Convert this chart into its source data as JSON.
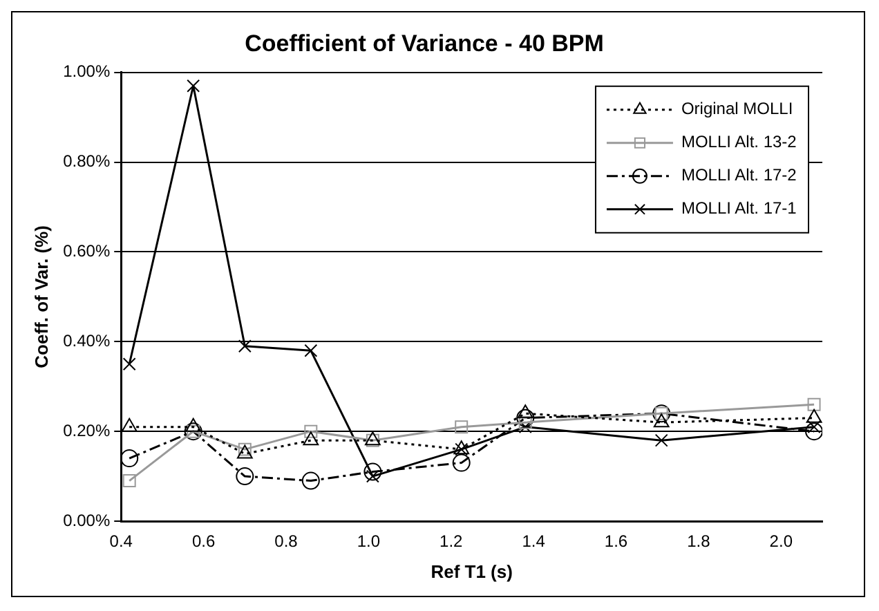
{
  "chart_data": {
    "type": "line",
    "title": "Coefficient of Variance - 40 BPM",
    "xlabel": "Ref T1 (s)",
    "ylabel": "Coeff. of Var. (%)",
    "x": [
      0.42,
      0.575,
      0.7,
      0.86,
      1.01,
      1.225,
      1.38,
      1.71,
      2.08
    ],
    "series": [
      {
        "name": "Original MOLLI",
        "color": "#000000",
        "marker": "triangle",
        "line_style": "dotted",
        "values": [
          0.21,
          0.21,
          0.15,
          0.18,
          0.18,
          0.16,
          0.24,
          0.22,
          0.23
        ]
      },
      {
        "name": "MOLLI Alt. 13-2",
        "color": "#999999",
        "marker": "square",
        "line_style": "solid",
        "values": [
          0.09,
          0.2,
          0.16,
          0.2,
          0.18,
          0.21,
          0.22,
          0.24,
          0.26
        ]
      },
      {
        "name": "MOLLI Alt. 17-2",
        "color": "#000000",
        "marker": "circle",
        "line_style": "dashed",
        "values": [
          0.14,
          0.2,
          0.1,
          0.09,
          0.11,
          0.13,
          0.23,
          0.24,
          0.2
        ]
      },
      {
        "name": "MOLLI Alt. 17-1",
        "color": "#000000",
        "marker": "cross",
        "line_style": "solid",
        "values": [
          0.35,
          0.97,
          0.39,
          0.38,
          0.1,
          0.16,
          0.21,
          0.18,
          0.21
        ]
      }
    ],
    "xlim": [
      0.4,
      2.1
    ],
    "xticks": [
      {
        "value": 0.4,
        "label": "0.4"
      },
      {
        "value": 0.6,
        "label": "0.6"
      },
      {
        "value": 0.8,
        "label": "0.8"
      },
      {
        "value": 1.0,
        "label": "1.0"
      },
      {
        "value": 1.2,
        "label": "1.2"
      },
      {
        "value": 1.4,
        "label": "1.4"
      },
      {
        "value": 1.6,
        "label": "1.6"
      },
      {
        "value": 1.8,
        "label": "1.8"
      },
      {
        "value": 2.0,
        "label": "2.0"
      }
    ],
    "ylim": [
      0,
      1
    ],
    "yticks": [
      {
        "value": 0,
        "label": "0.00%"
      },
      {
        "value": 0.2,
        "label": "0.20%"
      },
      {
        "value": 0.4,
        "label": "0.40%"
      },
      {
        "value": 0.6,
        "label": "0.60%"
      },
      {
        "value": 0.8,
        "label": "0.80%"
      },
      {
        "value": 1,
        "label": "1.00%"
      }
    ],
    "grid": "y",
    "legend": "top right"
  }
}
